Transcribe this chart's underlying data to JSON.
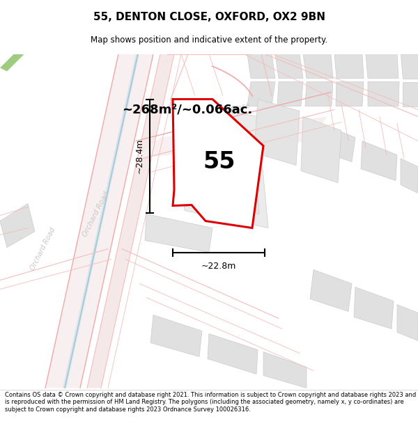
{
  "title": "55, DENTON CLOSE, OXFORD, OX2 9BN",
  "subtitle": "Map shows position and indicative extent of the property.",
  "area_label": "~268m²/~0.066ac.",
  "number_label": "55",
  "width_label": "~22.8m",
  "height_label": "~28.4m",
  "footer": "Contains OS data © Crown copyright and database right 2021. This information is subject to Crown copyright and database rights 2023 and is reproduced with the permission of HM Land Registry. The polygons (including the associated geometry, namely x, y co-ordinates) are subject to Crown copyright and database rights 2023 Ordnance Survey 100026316.",
  "road_pink": "#f5bcbc",
  "road_pink_mid": "#f0a8a8",
  "block_gray": "#e0e0e0",
  "block_gray_dark": "#d0d0d0",
  "property_edge": "#dd0000",
  "road_label_color": "#c0c0c0",
  "blue_line": "#a0c8d8",
  "green_patch": "#a0cc80"
}
